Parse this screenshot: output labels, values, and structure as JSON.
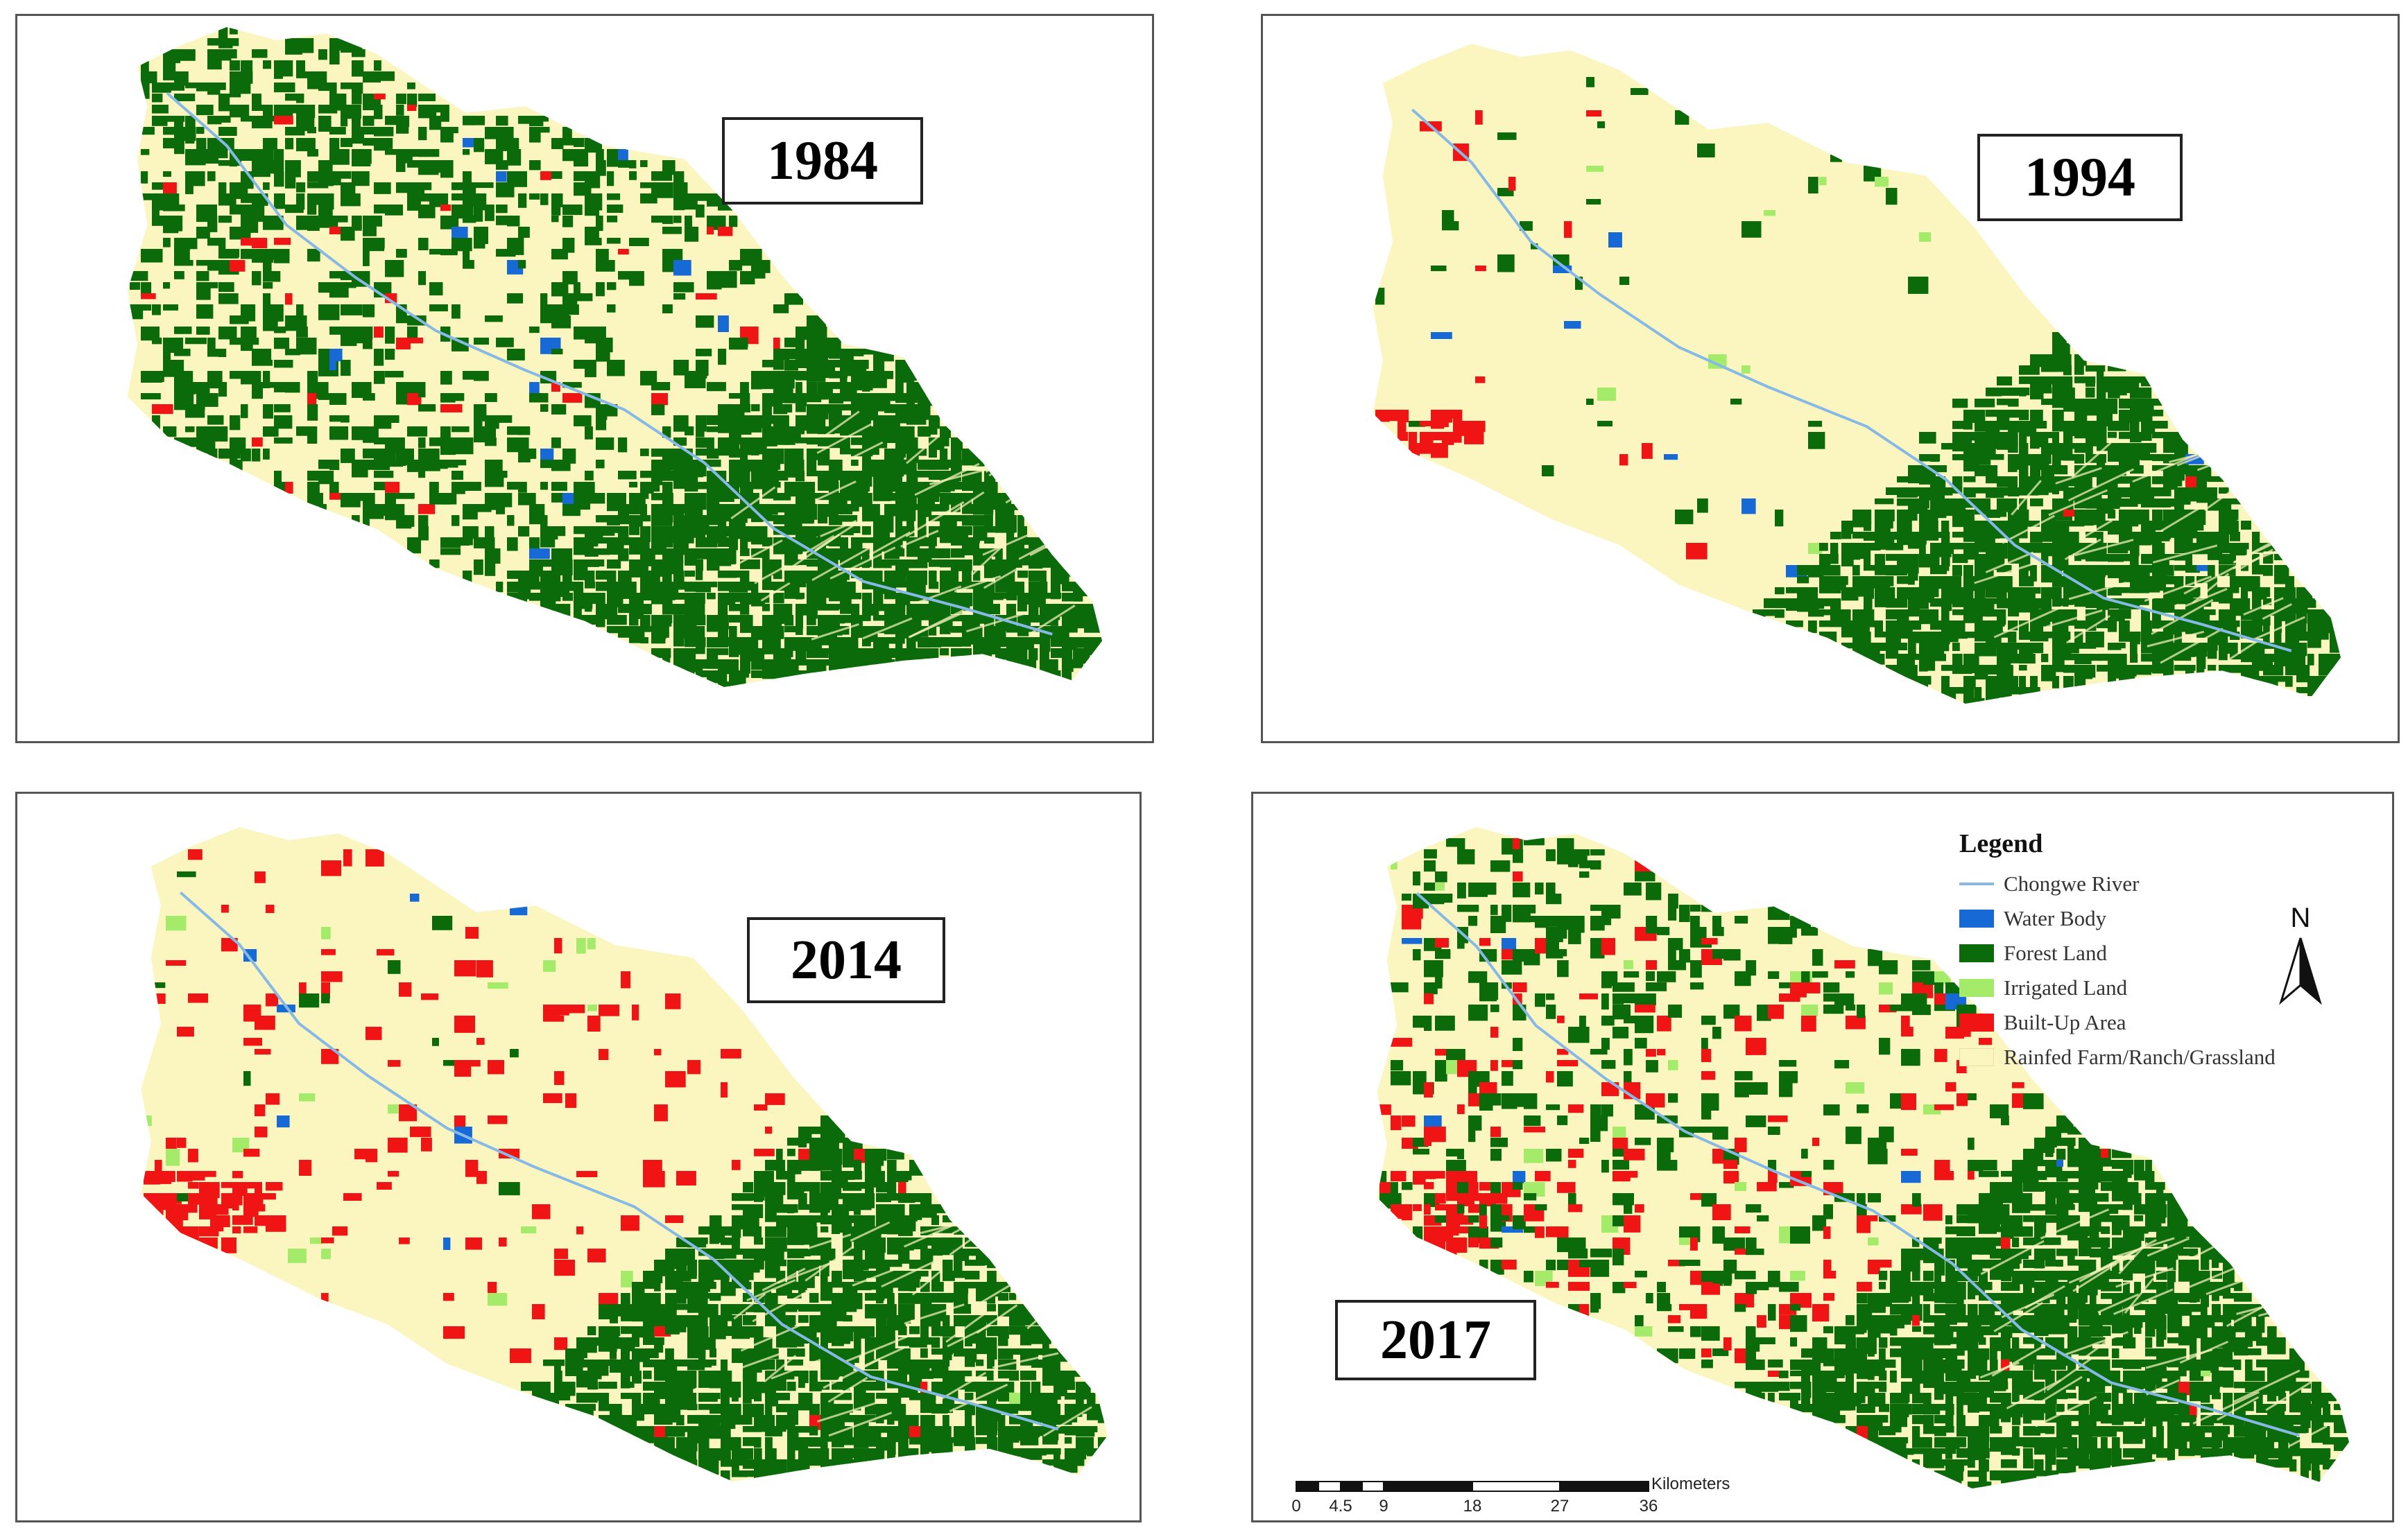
{
  "panels": [
    {
      "year": "1984"
    },
    {
      "year": "1994"
    },
    {
      "year": "2014"
    },
    {
      "year": "2017"
    }
  ],
  "legend": {
    "title": "Legend",
    "items": [
      {
        "label": "Chongwe River",
        "kind": "line",
        "color": "#86b9e6"
      },
      {
        "label": "Water Body",
        "kind": "fill",
        "color": "#1769d6"
      },
      {
        "label": "Forest Land",
        "kind": "fill",
        "color": "#0b6b0b"
      },
      {
        "label": "Irrigated Land",
        "kind": "fill",
        "color": "#a5eb6a"
      },
      {
        "label": "Built-Up Area",
        "kind": "fill",
        "color": "#f01414"
      },
      {
        "label": "Rainfed Farm/Ranch/Grassland",
        "kind": "fill",
        "color": "#fbf6bf"
      }
    ]
  },
  "north_arrow": {
    "label": "N"
  },
  "scale": {
    "unit": "Kilometers",
    "ticks": [
      "0",
      "4.5",
      "9",
      "18",
      "27",
      "36"
    ]
  }
}
